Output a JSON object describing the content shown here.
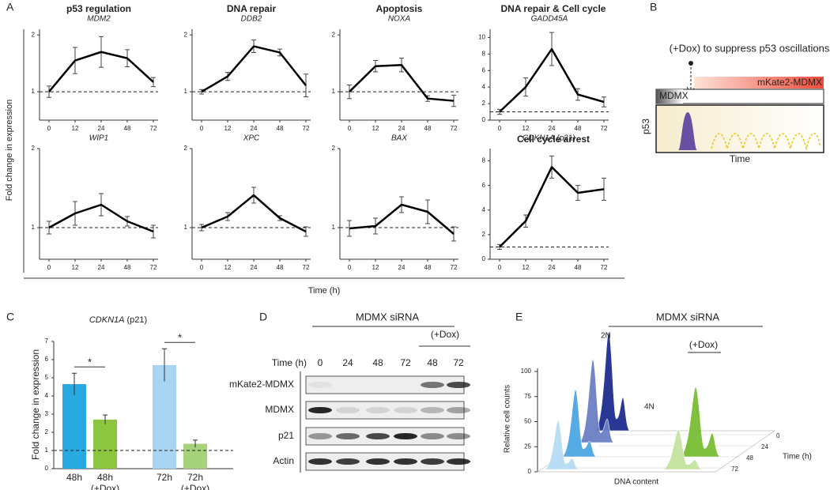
{
  "panel_labels": {
    "a": "A",
    "b": "B",
    "c": "C",
    "d": "D",
    "e": "E"
  },
  "panel_a": {
    "headers": [
      "p53 regulation",
      "DNA repair",
      "Apoptosis",
      "DNA repair & Cell cycle"
    ],
    "subheader": "Cell cycle arrest",
    "y_label": "Fold change in expression",
    "x_label": "Time (h)"
  },
  "chart_data": [
    {
      "type": "line",
      "title": "MDM2",
      "categories": [
        "0",
        "12",
        "24",
        "48",
        "72"
      ],
      "values": [
        1.0,
        1.55,
        1.7,
        1.59,
        1.17
      ],
      "errors": [
        0.1,
        0.23,
        0.27,
        0.15,
        0.08
      ],
      "color": "#000000",
      "ylim": [
        0.5,
        2.1
      ],
      "yticks": [
        1,
        2
      ],
      "reference_line": 1
    },
    {
      "type": "line",
      "title": "DDB2",
      "categories": [
        "0",
        "12",
        "24",
        "48",
        "72"
      ],
      "values": [
        1.0,
        1.27,
        1.8,
        1.69,
        1.11
      ],
      "errors": [
        0.04,
        0.07,
        0.11,
        0.06,
        0.2
      ],
      "color": "#000000",
      "ylim": [
        0.5,
        2.1
      ],
      "yticks": [
        1,
        2
      ],
      "reference_line": 1
    },
    {
      "type": "line",
      "title": "NOXA",
      "categories": [
        "0",
        "12",
        "24",
        "48",
        "72"
      ],
      "values": [
        1.0,
        1.45,
        1.47,
        0.88,
        0.84
      ],
      "errors": [
        0.12,
        0.1,
        0.12,
        0.05,
        0.1
      ],
      "color": "#000000",
      "ylim": [
        0.5,
        2.1
      ],
      "yticks": [
        1,
        2
      ],
      "reference_line": 1
    },
    {
      "type": "line",
      "title": "GADD45A",
      "categories": [
        "0",
        "12",
        "24",
        "48",
        "72"
      ],
      "values": [
        1.0,
        4.0,
        8.6,
        3.1,
        2.2
      ],
      "errors": [
        0.3,
        1.1,
        2.0,
        0.7,
        0.6
      ],
      "color": "#000000",
      "ylim": [
        0,
        11
      ],
      "yticks": [
        0,
        2,
        4,
        6,
        8,
        10
      ],
      "reference_line": 1
    },
    {
      "type": "line",
      "title": "WIP1",
      "categories": [
        "0",
        "12",
        "24",
        "48",
        "72"
      ],
      "values": [
        1.0,
        1.18,
        1.29,
        1.08,
        0.95
      ],
      "errors": [
        0.08,
        0.15,
        0.14,
        0.06,
        0.08
      ],
      "color": "#000000",
      "ylim": [
        0.6,
        2.0
      ],
      "yticks": [
        1,
        2
      ],
      "reference_line": 1
    },
    {
      "type": "line",
      "title": "XPC",
      "categories": [
        "0",
        "12",
        "24",
        "48",
        "72"
      ],
      "values": [
        1.0,
        1.14,
        1.41,
        1.12,
        0.95
      ],
      "errors": [
        0.04,
        0.05,
        0.1,
        0.03,
        0.06
      ],
      "color": "#000000",
      "ylim": [
        0.6,
        2.0
      ],
      "yticks": [
        1,
        2
      ],
      "reference_line": 1
    },
    {
      "type": "line",
      "title": "BAX",
      "categories": [
        "0",
        "12",
        "24",
        "48",
        "72"
      ],
      "values": [
        0.99,
        1.02,
        1.29,
        1.2,
        0.92
      ],
      "errors": [
        0.1,
        0.1,
        0.1,
        0.15,
        0.09
      ],
      "color": "#000000",
      "ylim": [
        0.6,
        2.0
      ],
      "yticks": [
        1,
        2
      ],
      "reference_line": 1
    },
    {
      "type": "line",
      "title": "CDKN1A",
      "title_note": "(p21)",
      "categories": [
        "0",
        "12",
        "24",
        "48",
        "72"
      ],
      "values": [
        1.0,
        3.1,
        7.5,
        5.4,
        5.7
      ],
      "errors": [
        0.2,
        0.5,
        0.9,
        0.6,
        0.9
      ],
      "color": "#000000",
      "ylim": [
        0,
        9
      ],
      "yticks": [
        0,
        2,
        4,
        6,
        8
      ],
      "reference_line": 1
    },
    {
      "type": "bar",
      "title": "CDKN1A",
      "title_note": "(p21)",
      "y_label": "Fold change in expression",
      "categories": [
        "48h",
        "48h",
        "72h",
        "72h"
      ],
      "category_notes": [
        null,
        "(+Dox)",
        null,
        "(+Dox)"
      ],
      "values": [
        4.65,
        2.7,
        5.7,
        1.37
      ],
      "errors": [
        0.6,
        0.25,
        0.9,
        0.2
      ],
      "colors": [
        "#29a9e1",
        "#8cc63f",
        "#a9d4f2",
        "#a5d27a"
      ],
      "ylim": [
        0,
        7
      ],
      "yticks": [
        0,
        1,
        2,
        3,
        4,
        5,
        6,
        7
      ],
      "reference_line": 1,
      "annotations": [
        "*",
        "*"
      ]
    }
  ],
  "panel_b": {
    "annotation": "(+Dox) to suppress p53 oscillations",
    "construct": "mKate2-MDMX",
    "endogenous": "MDMX",
    "y_label": "p53",
    "x_label": "Time"
  },
  "panel_d": {
    "condition": "MDMX siRNA",
    "treatment": "(+Dox)",
    "time_label": "Time (h)",
    "lanes": [
      "0",
      "24",
      "48",
      "72",
      "48",
      "72"
    ],
    "rows": [
      "mKate2-MDMX",
      "MDMX",
      "p21",
      "Actin"
    ]
  },
  "panel_e": {
    "condition": "MDMX siRNA",
    "treatment": "(+Dox)",
    "peak_labels": [
      "2N",
      "4N"
    ],
    "y_label": "Relative cell counts",
    "x_label": "DNA content",
    "yticks": [
      0,
      25,
      50,
      75,
      100
    ],
    "depth_label": "Time (h)",
    "depth_ticks": [
      0,
      24,
      48,
      72
    ]
  }
}
